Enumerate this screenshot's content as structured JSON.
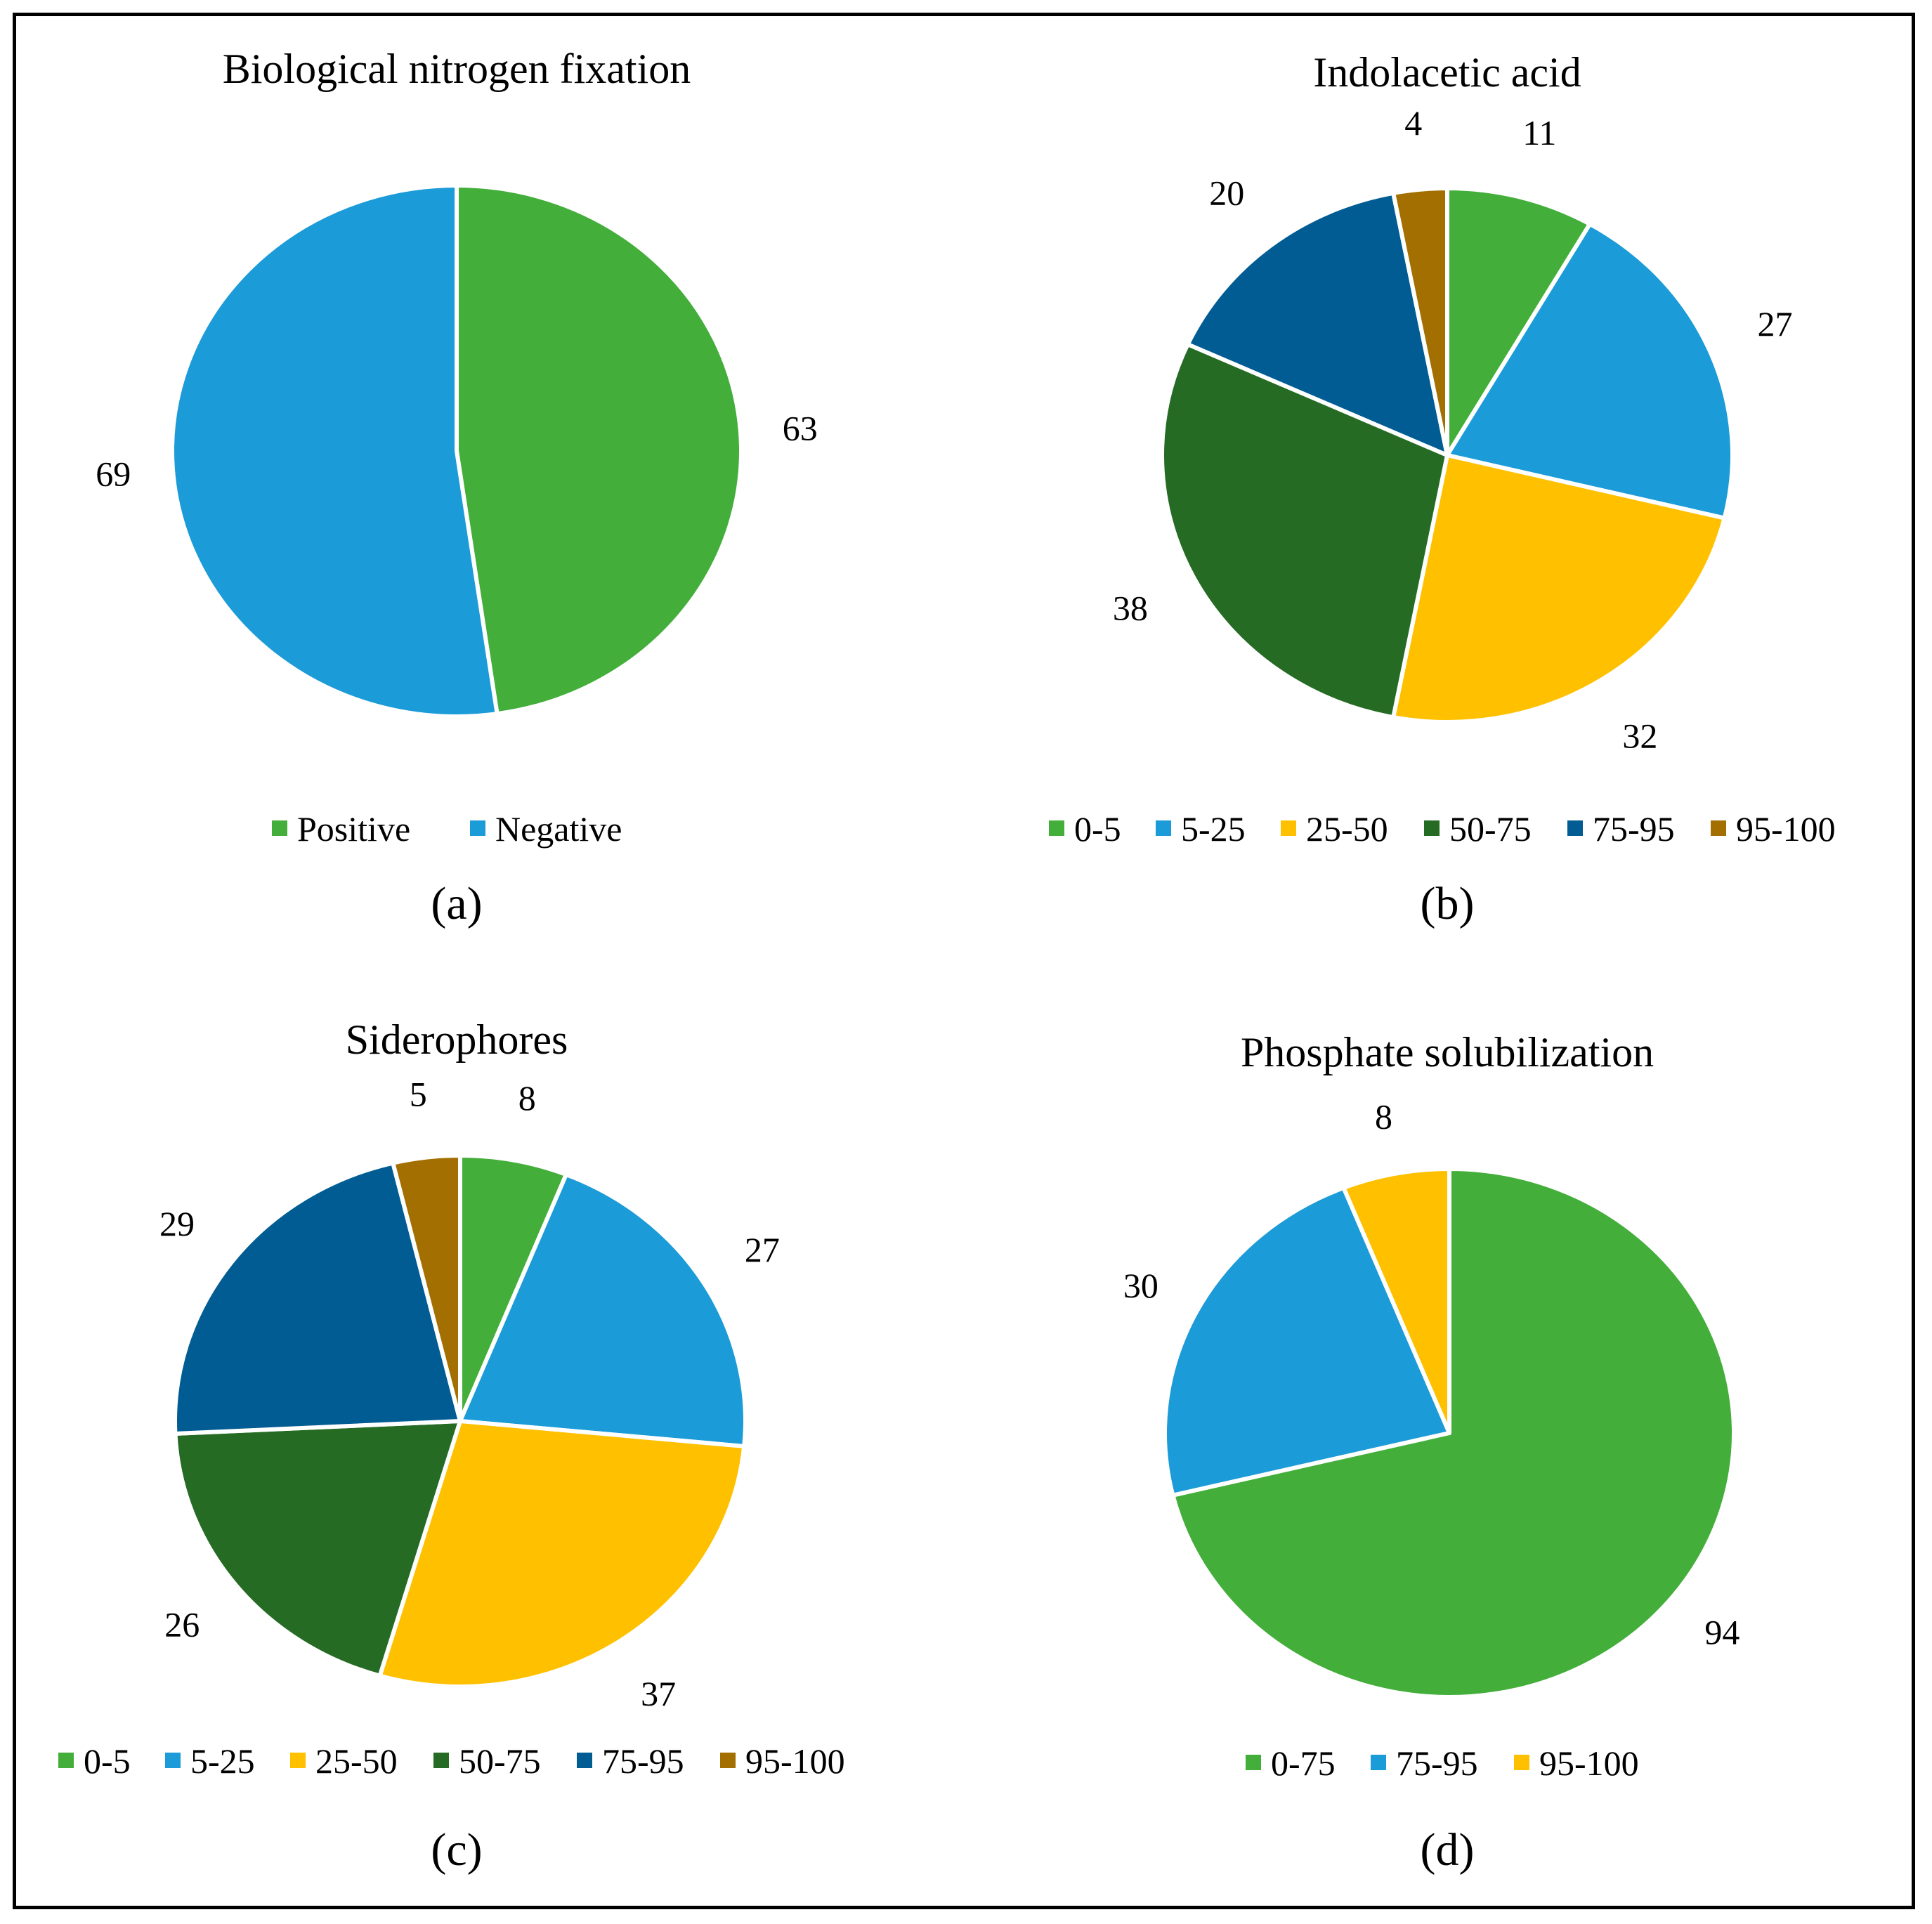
{
  "chart_data": [
    {
      "type": "pie",
      "title": "Biological nitrogen fixation",
      "caption": "(a)",
      "categories": [
        "Positive",
        "Negative"
      ],
      "values": [
        63,
        69
      ],
      "colors": [
        "#43AE3A",
        "#1B9BD7"
      ]
    },
    {
      "type": "pie",
      "title": "Indolacetic acid",
      "caption": "(b)",
      "categories": [
        "0-5",
        "5-25",
        "25-50",
        "50-75",
        "75-95",
        "95-100"
      ],
      "values": [
        11,
        27,
        32,
        38,
        20,
        4
      ],
      "colors": [
        "#43AE3A",
        "#1B9BD7",
        "#FFC000",
        "#256B24",
        "#005C93",
        "#A36F00"
      ]
    },
    {
      "type": "pie",
      "title": "Siderophores",
      "caption": "(c)",
      "categories": [
        "0-5",
        "5-25",
        "25-50",
        "50-75",
        "75-95",
        "95-100"
      ],
      "values": [
        8,
        27,
        37,
        26,
        29,
        5
      ],
      "colors": [
        "#43AE3A",
        "#1B9BD7",
        "#FFC000",
        "#256B24",
        "#005C93",
        "#A36F00"
      ]
    },
    {
      "type": "pie",
      "title": "Phosphate solubilization",
      "caption": "(d)",
      "categories": [
        "0-75",
        "75-95",
        "95-100"
      ],
      "values": [
        94,
        30,
        8
      ],
      "colors": [
        "#43AE3A",
        "#1B9BD7",
        "#FFC000"
      ]
    }
  ]
}
